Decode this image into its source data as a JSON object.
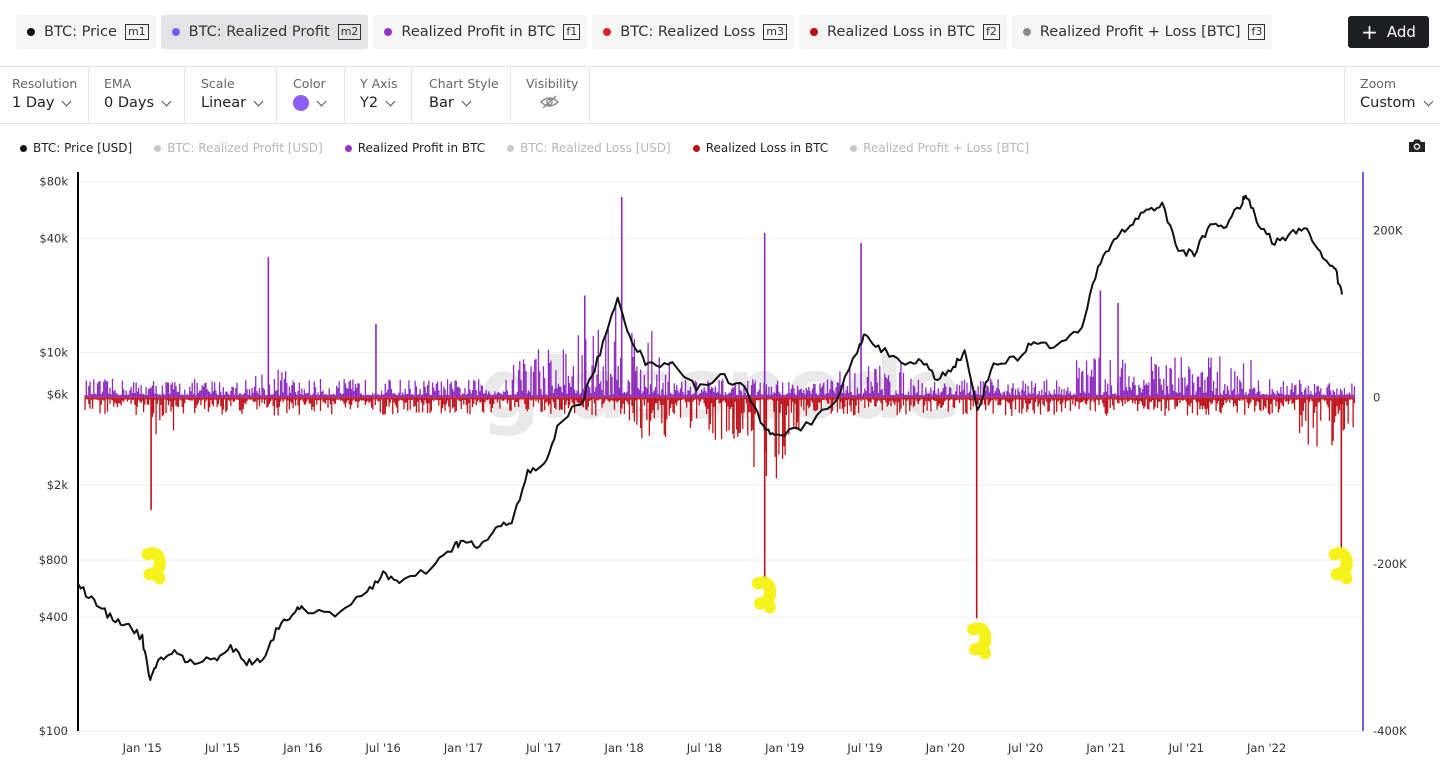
{
  "metric_tabs": [
    {
      "label": "BTC: Price",
      "key": "m1",
      "color": "#111111",
      "active": false
    },
    {
      "label": "BTC: Realized Profit",
      "key": "m2",
      "color": "#7b5cf0",
      "active": true
    },
    {
      "label": "Realized Profit in BTC",
      "key": "f1",
      "color": "#9333c7",
      "active": false
    },
    {
      "label": "BTC: Realized Loss",
      "key": "m3",
      "color": "#e0202a",
      "active": false
    },
    {
      "label": "Realized Loss in BTC",
      "key": "f2",
      "color": "#b80f0f",
      "active": false
    },
    {
      "label": "Realized Profit + Loss [BTC]",
      "key": "f3",
      "color": "#8a8a8a",
      "active": false
    }
  ],
  "add_button": "Add",
  "settings": {
    "resolution": {
      "label": "Resolution",
      "value": "1 Day"
    },
    "ema": {
      "label": "EMA",
      "value": "0 Days"
    },
    "scale": {
      "label": "Scale",
      "value": "Linear"
    },
    "color": {
      "label": "Color",
      "value": "#8b5cf6"
    },
    "yaxis": {
      "label": "Y Axis",
      "value": "Y2"
    },
    "chart_style": {
      "label": "Chart Style",
      "value": "Bar"
    },
    "visibility": {
      "label": "Visibility"
    },
    "zoom": {
      "label": "Zoom",
      "value": "Custom"
    }
  },
  "legend": [
    {
      "label": "BTC: Price [USD]",
      "color": "#111111",
      "enabled": true
    },
    {
      "label": "BTC: Realized Profit [USD]",
      "color": "#7b5cf0",
      "enabled": false
    },
    {
      "label": "Realized Profit in BTC",
      "color": "#9333c7",
      "enabled": true
    },
    {
      "label": "BTC: Realized Loss [USD]",
      "color": "#e0202a",
      "enabled": false
    },
    {
      "label": "Realized Loss in BTC",
      "color": "#b80f0f",
      "enabled": true
    },
    {
      "label": "Realized Profit + Loss [BTC]",
      "color": "#8a8a8a",
      "enabled": false
    }
  ],
  "watermark": "glassnode",
  "chart_data": {
    "type": "bar",
    "x_ticks": [
      "Jan '15",
      "Jul '15",
      "Jan '16",
      "Jul '16",
      "Jan '17",
      "Jul '17",
      "Jan '18",
      "Jul '18",
      "Jan '19",
      "Jul '19",
      "Jan '20",
      "Jul '20",
      "Jan '21",
      "Jul '21",
      "Jan '22"
    ],
    "x_range": [
      2014.6,
      2022.6
    ],
    "y_left": {
      "scale": "log",
      "ticks": [
        "$80k",
        "$40k",
        "$10k",
        "$6k",
        "$2k",
        "$800",
        "$400",
        "$100"
      ],
      "tick_values": [
        80000,
        40000,
        10000,
        6000,
        2000,
        800,
        400,
        100
      ],
      "range": [
        100,
        90000
      ]
    },
    "y_right": {
      "scale": "linear",
      "ticks": [
        "200K",
        "0",
        "-200K",
        "-400K"
      ],
      "tick_values": [
        200000,
        0,
        -200000,
        -400000
      ],
      "range": [
        -400000,
        270000
      ]
    },
    "series": [
      {
        "name": "BTC: Price [USD]",
        "axis": "left",
        "style": "line",
        "color": "#111111",
        "points": [
          [
            2014.6,
            600
          ],
          [
            2014.7,
            480
          ],
          [
            2014.8,
            400
          ],
          [
            2014.9,
            370
          ],
          [
            2015.0,
            310
          ],
          [
            2015.05,
            180
          ],
          [
            2015.1,
            240
          ],
          [
            2015.2,
            260
          ],
          [
            2015.3,
            230
          ],
          [
            2015.45,
            240
          ],
          [
            2015.55,
            280
          ],
          [
            2015.65,
            230
          ],
          [
            2015.75,
            240
          ],
          [
            2015.85,
            360
          ],
          [
            2015.95,
            430
          ],
          [
            2016.0,
            440
          ],
          [
            2016.2,
            420
          ],
          [
            2016.4,
            530
          ],
          [
            2016.5,
            690
          ],
          [
            2016.6,
            600
          ],
          [
            2016.8,
            720
          ],
          [
            2016.95,
            960
          ],
          [
            2017.0,
            1000
          ],
          [
            2017.1,
            940
          ],
          [
            2017.2,
            1150
          ],
          [
            2017.3,
            1300
          ],
          [
            2017.4,
            2300
          ],
          [
            2017.5,
            2500
          ],
          [
            2017.6,
            4300
          ],
          [
            2017.75,
            5800
          ],
          [
            2017.85,
            10000
          ],
          [
            2017.96,
            19000
          ],
          [
            2018.05,
            11500
          ],
          [
            2018.15,
            8500
          ],
          [
            2018.3,
            9000
          ],
          [
            2018.45,
            6400
          ],
          [
            2018.6,
            7600
          ],
          [
            2018.75,
            6500
          ],
          [
            2018.87,
            4000
          ],
          [
            2018.95,
            3700
          ],
          [
            2019.1,
            3900
          ],
          [
            2019.3,
            5300
          ],
          [
            2019.45,
            10000
          ],
          [
            2019.5,
            12500
          ],
          [
            2019.6,
            10500
          ],
          [
            2019.75,
            8300
          ],
          [
            2019.85,
            9200
          ],
          [
            2019.95,
            7200
          ],
          [
            2020.05,
            8500
          ],
          [
            2020.12,
            10000
          ],
          [
            2020.2,
            5000
          ],
          [
            2020.3,
            8800
          ],
          [
            2020.45,
            9300
          ],
          [
            2020.55,
            11500
          ],
          [
            2020.7,
            10800
          ],
          [
            2020.85,
            13500
          ],
          [
            2020.95,
            28000
          ],
          [
            2021.05,
            40000
          ],
          [
            2021.15,
            47000
          ],
          [
            2021.25,
            57000
          ],
          [
            2021.35,
            60000
          ],
          [
            2021.45,
            35000
          ],
          [
            2021.55,
            33000
          ],
          [
            2021.65,
            48000
          ],
          [
            2021.75,
            47000
          ],
          [
            2021.85,
            63000
          ],
          [
            2021.88,
            67000
          ],
          [
            2021.95,
            47000
          ],
          [
            2022.05,
            38000
          ],
          [
            2022.15,
            42000
          ],
          [
            2022.25,
            46000
          ],
          [
            2022.35,
            31000
          ],
          [
            2022.42,
            29000
          ],
          [
            2022.47,
            20000
          ]
        ]
      },
      {
        "name": "Realized Profit in BTC",
        "axis": "right",
        "style": "bar",
        "color": "#8e2bbf",
        "spikes": [
          [
            2015.78,
            168000
          ],
          [
            2016.45,
            88000
          ],
          [
            2017.75,
            122000
          ],
          [
            2017.98,
            240000
          ],
          [
            2018.87,
            197000
          ],
          [
            2019.47,
            185000
          ],
          [
            2020.96,
            128000
          ],
          [
            2021.07,
            113000
          ]
        ]
      },
      {
        "name": "Realized Loss in BTC",
        "axis": "right",
        "style": "bar",
        "color": "#c0121a",
        "spikes": [
          [
            2015.05,
            -135000
          ],
          [
            2018.87,
            -220000
          ],
          [
            2020.19,
            -265000
          ],
          [
            2022.46,
            -190000
          ]
        ]
      }
    ]
  }
}
